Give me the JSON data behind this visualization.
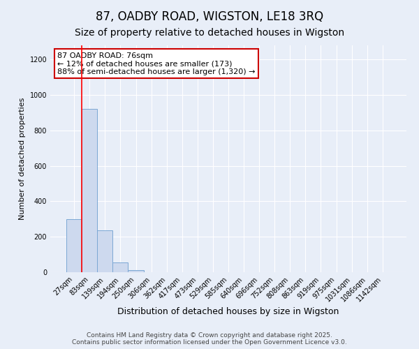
{
  "title": "87, OADBY ROAD, WIGSTON, LE18 3RQ",
  "subtitle": "Size of property relative to detached houses in Wigston",
  "xlabel": "Distribution of detached houses by size in Wigston",
  "ylabel": "Number of detached properties",
  "bin_labels": [
    "27sqm",
    "83sqm",
    "139sqm",
    "194sqm",
    "250sqm",
    "306sqm",
    "362sqm",
    "417sqm",
    "473sqm",
    "529sqm",
    "585sqm",
    "640sqm",
    "696sqm",
    "752sqm",
    "808sqm",
    "863sqm",
    "919sqm",
    "975sqm",
    "1031sqm",
    "1086sqm",
    "1142sqm"
  ],
  "bar_heights": [
    300,
    920,
    235,
    55,
    10,
    0,
    0,
    0,
    0,
    0,
    0,
    0,
    0,
    0,
    0,
    0,
    0,
    0,
    0,
    0,
    0
  ],
  "bar_color": "#cdd9ee",
  "bar_edge_color": "#7ba7d4",
  "ylim": [
    0,
    1280
  ],
  "yticks": [
    0,
    200,
    400,
    600,
    800,
    1000,
    1200
  ],
  "annotation_text": "87 OADBY ROAD: 76sqm\n← 12% of detached houses are smaller (173)\n88% of semi-detached houses are larger (1,320) →",
  "annotation_box_color": "#ffffff",
  "annotation_box_edge": "#cc0000",
  "red_line_x": 0.5,
  "footer_text": "Contains HM Land Registry data © Crown copyright and database right 2025.\nContains public sector information licensed under the Open Government Licence v3.0.",
  "background_color": "#e8eef8",
  "grid_color": "#ffffff",
  "title_fontsize": 12,
  "subtitle_fontsize": 10,
  "ylabel_fontsize": 8,
  "xlabel_fontsize": 9,
  "tick_fontsize": 7,
  "footer_fontsize": 6.5,
  "annotation_fontsize": 8
}
